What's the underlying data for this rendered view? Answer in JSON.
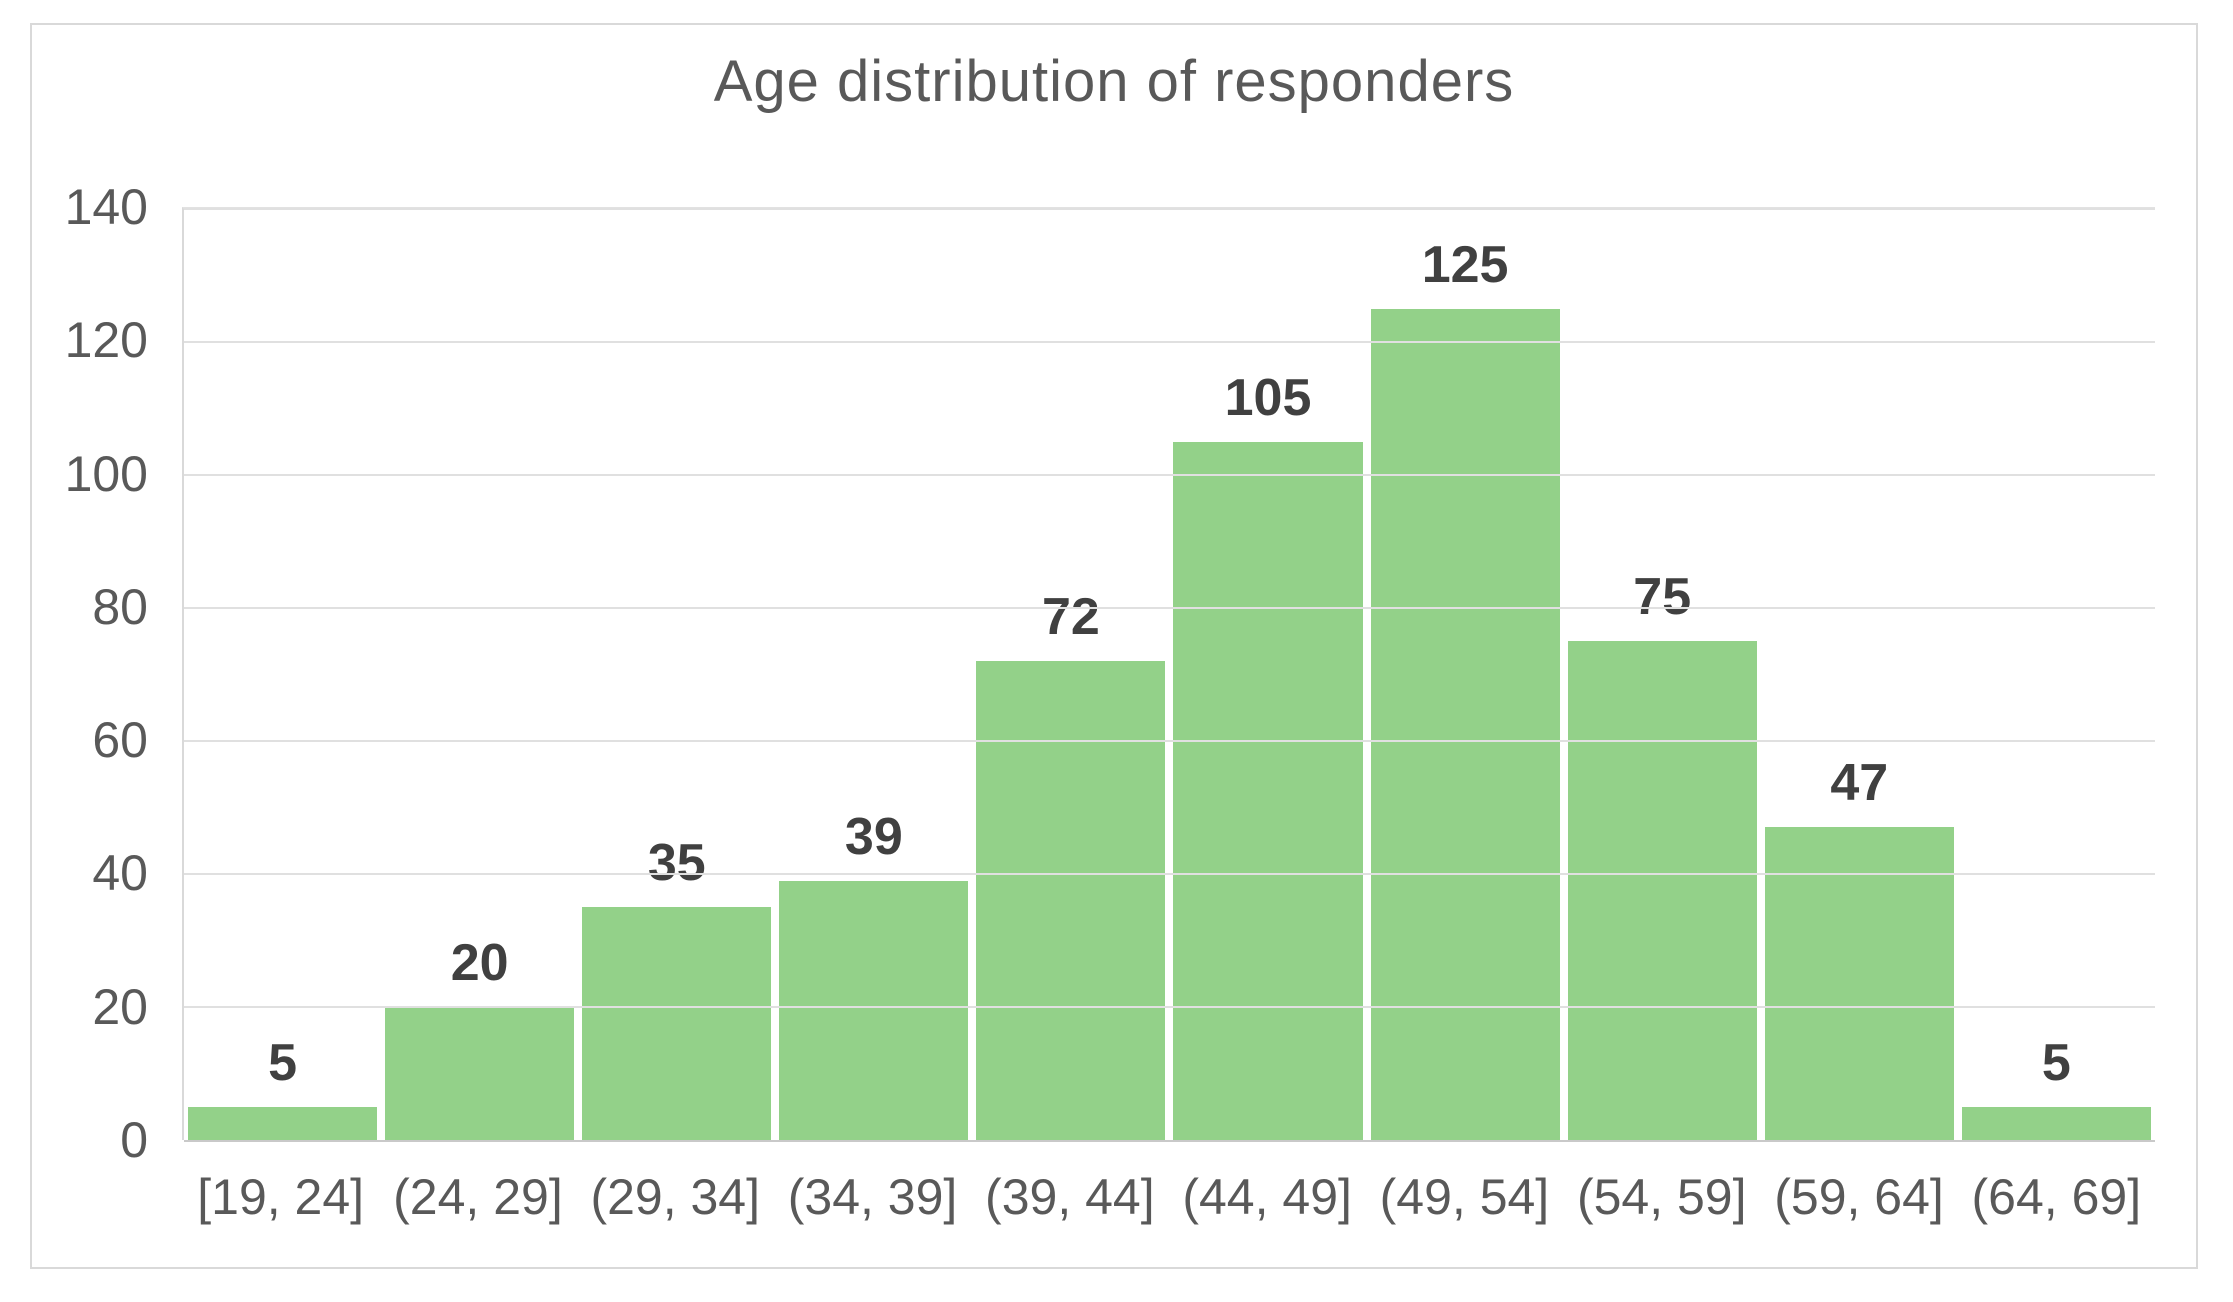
{
  "chart_data": {
    "type": "bar",
    "title": "Age distribution of responders",
    "categories": [
      "[19, 24]",
      "(24, 29]",
      "(29, 34]",
      "(34, 39]",
      "(39, 44]",
      "(44, 49]",
      "(49, 54]",
      "(54, 59]",
      "(59, 64]",
      "(64, 69]"
    ],
    "values": [
      5,
      20,
      35,
      39,
      72,
      105,
      125,
      75,
      47,
      5
    ],
    "y_ticks": [
      0,
      20,
      40,
      60,
      80,
      100,
      120,
      140
    ],
    "ylim": [
      0,
      140
    ],
    "xlabel": "",
    "ylabel": "",
    "grid": true,
    "legend": false,
    "data_labels": true,
    "colors": {
      "bar_fill": "#93d189",
      "data_label": "#404040",
      "axis_text": "#595959",
      "title_text": "#595959",
      "gridline": "#e0e0e0",
      "frame_border": "#d9d9d9",
      "background": "#ffffff"
    }
  }
}
